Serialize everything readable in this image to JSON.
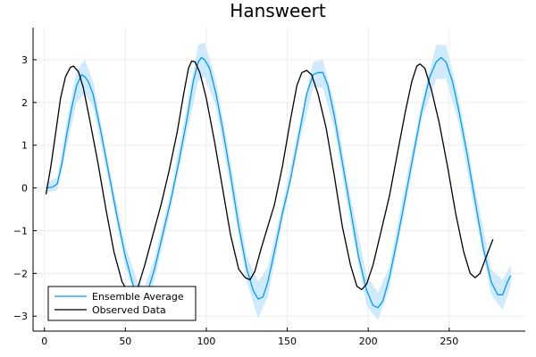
{
  "chart_data": {
    "type": "line",
    "title": "Hansweert",
    "xlabel": "",
    "ylabel": "",
    "xlim": [
      -7,
      297
    ],
    "ylim": [
      -3.35,
      3.75
    ],
    "x_ticks": [
      0,
      50,
      100,
      150,
      200,
      250
    ],
    "x_tick_labels": [
      "0",
      "50",
      "100",
      "150",
      "200",
      "250"
    ],
    "y_ticks": [
      -3,
      -2,
      -1,
      0,
      1,
      2,
      3
    ],
    "y_tick_labels": [
      "−3",
      "−2",
      "−1",
      "0",
      "1",
      "2",
      "3"
    ],
    "grid": true,
    "legend_position": "bottom-left",
    "colors": {
      "ensemble": "#009af9",
      "band": "#cfeafd",
      "observed": "#000000",
      "grid": "#ededed",
      "axis": "#000000"
    },
    "series": [
      {
        "name": "Ensemble Average",
        "color": "#009af9",
        "points": [
          [
            1,
            0.0
          ],
          [
            5,
            0.02
          ],
          [
            8,
            0.1
          ],
          [
            11,
            0.6
          ],
          [
            14,
            1.3
          ],
          [
            17,
            1.9
          ],
          [
            20,
            2.4
          ],
          [
            23,
            2.65
          ],
          [
            25,
            2.6
          ],
          [
            27,
            2.5
          ],
          [
            30,
            2.2
          ],
          [
            35,
            1.3
          ],
          [
            40,
            0.3
          ],
          [
            45,
            -0.7
          ],
          [
            50,
            -1.6
          ],
          [
            55,
            -2.3
          ],
          [
            58,
            -2.55
          ],
          [
            61,
            -2.6
          ],
          [
            64,
            -2.4
          ],
          [
            68,
            -1.9
          ],
          [
            73,
            -1.1
          ],
          [
            78,
            -0.3
          ],
          [
            83,
            0.6
          ],
          [
            88,
            1.6
          ],
          [
            92,
            2.5
          ],
          [
            95,
            2.95
          ],
          [
            97,
            3.05
          ],
          [
            99,
            3.0
          ],
          [
            102,
            2.8
          ],
          [
            106,
            2.2
          ],
          [
            110,
            1.4
          ],
          [
            115,
            0.3
          ],
          [
            120,
            -0.9
          ],
          [
            125,
            -1.9
          ],
          [
            129,
            -2.4
          ],
          [
            132,
            -2.6
          ],
          [
            135,
            -2.55
          ],
          [
            138,
            -2.2
          ],
          [
            142,
            -1.5
          ],
          [
            147,
            -0.6
          ],
          [
            152,
            0.2
          ],
          [
            157,
            1.2
          ],
          [
            162,
            2.2
          ],
          [
            166,
            2.65
          ],
          [
            169,
            2.7
          ],
          [
            172,
            2.7
          ],
          [
            175,
            2.4
          ],
          [
            179,
            1.7
          ],
          [
            184,
            0.6
          ],
          [
            189,
            -0.5
          ],
          [
            194,
            -1.6
          ],
          [
            199,
            -2.4
          ],
          [
            203,
            -2.75
          ],
          [
            206,
            -2.8
          ],
          [
            209,
            -2.65
          ],
          [
            213,
            -2.1
          ],
          [
            218,
            -1.2
          ],
          [
            223,
            -0.2
          ],
          [
            228,
            0.8
          ],
          [
            233,
            1.8
          ],
          [
            238,
            2.6
          ],
          [
            242,
            2.95
          ],
          [
            245,
            3.05
          ],
          [
            248,
            2.95
          ],
          [
            252,
            2.5
          ],
          [
            256,
            1.8
          ],
          [
            261,
            0.8
          ],
          [
            266,
            -0.3
          ],
          [
            271,
            -1.4
          ],
          [
            276,
            -2.2
          ],
          [
            280,
            -2.5
          ],
          [
            283,
            -2.5
          ],
          [
            286,
            -2.2
          ],
          [
            288,
            -2.05
          ]
        ]
      },
      {
        "name": "Observed Data",
        "color": "#000000",
        "points": [
          [
            1,
            -0.15
          ],
          [
            4,
            0.5
          ],
          [
            7,
            1.3
          ],
          [
            10,
            2.1
          ],
          [
            13,
            2.6
          ],
          [
            16,
            2.82
          ],
          [
            18,
            2.85
          ],
          [
            21,
            2.72
          ],
          [
            24,
            2.35
          ],
          [
            28,
            1.6
          ],
          [
            33,
            0.6
          ],
          [
            38,
            -0.5
          ],
          [
            43,
            -1.5
          ],
          [
            48,
            -2.2
          ],
          [
            52,
            -2.45
          ],
          [
            55,
            -2.35
          ],
          [
            58,
            -2.3
          ],
          [
            62,
            -1.8
          ],
          [
            67,
            -1.1
          ],
          [
            72,
            -0.4
          ],
          [
            77,
            0.4
          ],
          [
            82,
            1.3
          ],
          [
            86,
            2.2
          ],
          [
            89,
            2.8
          ],
          [
            91,
            2.97
          ],
          [
            93,
            2.95
          ],
          [
            96,
            2.7
          ],
          [
            100,
            2.1
          ],
          [
            105,
            1.1
          ],
          [
            110,
            0.0
          ],
          [
            115,
            -1.1
          ],
          [
            120,
            -1.9
          ],
          [
            124,
            -2.1
          ],
          [
            127,
            -2.15
          ],
          [
            130,
            -1.95
          ],
          [
            134,
            -1.4
          ],
          [
            138,
            -0.9
          ],
          [
            142,
            -0.4
          ],
          [
            147,
            0.5
          ],
          [
            152,
            1.6
          ],
          [
            156,
            2.4
          ],
          [
            159,
            2.7
          ],
          [
            162,
            2.75
          ],
          [
            165,
            2.65
          ],
          [
            169,
            2.2
          ],
          [
            174,
            1.4
          ],
          [
            179,
            0.3
          ],
          [
            184,
            -0.9
          ],
          [
            189,
            -1.8
          ],
          [
            193,
            -2.3
          ],
          [
            196,
            -2.38
          ],
          [
            199,
            -2.25
          ],
          [
            203,
            -1.8
          ],
          [
            208,
            -1.0
          ],
          [
            213,
            -0.2
          ],
          [
            218,
            0.8
          ],
          [
            223,
            1.8
          ],
          [
            227,
            2.5
          ],
          [
            230,
            2.85
          ],
          [
            232,
            2.9
          ],
          [
            235,
            2.8
          ],
          [
            239,
            2.3
          ],
          [
            244,
            1.5
          ],
          [
            249,
            0.5
          ],
          [
            254,
            -0.6
          ],
          [
            259,
            -1.5
          ],
          [
            263,
            -2.0
          ],
          [
            266,
            -2.1
          ],
          [
            269,
            -2.0
          ],
          [
            273,
            -1.6
          ],
          [
            277,
            -1.2
          ]
        ]
      }
    ],
    "band": {
      "series": "Ensemble Average",
      "lower": [
        [
          1,
          -0.12
        ],
        [
          8,
          -0.05
        ],
        [
          14,
          1.0
        ],
        [
          20,
          2.0
        ],
        [
          25,
          2.2
        ],
        [
          30,
          1.9
        ],
        [
          40,
          0.1
        ],
        [
          50,
          -1.85
        ],
        [
          58,
          -2.85
        ],
        [
          62,
          -2.9
        ],
        [
          68,
          -2.15
        ],
        [
          78,
          -0.5
        ],
        [
          88,
          1.3
        ],
        [
          95,
          2.5
        ],
        [
          99,
          2.6
        ],
        [
          106,
          1.9
        ],
        [
          115,
          0.0
        ],
        [
          125,
          -2.2
        ],
        [
          132,
          -3.05
        ],
        [
          138,
          -2.55
        ],
        [
          147,
          -0.8
        ],
        [
          157,
          1.0
        ],
        [
          166,
          2.35
        ],
        [
          172,
          2.35
        ],
        [
          179,
          1.4
        ],
        [
          189,
          -0.8
        ],
        [
          199,
          -2.75
        ],
        [
          206,
          -3.1
        ],
        [
          213,
          -2.35
        ],
        [
          223,
          -0.45
        ],
        [
          233,
          1.6
        ],
        [
          242,
          2.55
        ],
        [
          248,
          2.55
        ],
        [
          256,
          1.5
        ],
        [
          266,
          -0.6
        ],
        [
          276,
          -2.5
        ],
        [
          283,
          -2.85
        ],
        [
          288,
          -2.3
        ]
      ],
      "upper": [
        [
          1,
          0.12
        ],
        [
          8,
          0.25
        ],
        [
          14,
          1.6
        ],
        [
          20,
          2.75
        ],
        [
          25,
          3.0
        ],
        [
          30,
          2.5
        ],
        [
          40,
          0.5
        ],
        [
          50,
          -1.35
        ],
        [
          58,
          -2.25
        ],
        [
          62,
          -2.3
        ],
        [
          68,
          -1.65
        ],
        [
          78,
          -0.1
        ],
        [
          88,
          1.9
        ],
        [
          95,
          3.35
        ],
        [
          99,
          3.4
        ],
        [
          106,
          2.5
        ],
        [
          115,
          0.6
        ],
        [
          125,
          -1.6
        ],
        [
          132,
          -2.2
        ],
        [
          138,
          -1.85
        ],
        [
          147,
          -0.4
        ],
        [
          157,
          1.4
        ],
        [
          166,
          2.95
        ],
        [
          172,
          3.0
        ],
        [
          179,
          2.0
        ],
        [
          189,
          -0.2
        ],
        [
          199,
          -2.05
        ],
        [
          206,
          -2.45
        ],
        [
          213,
          -1.85
        ],
        [
          223,
          0.1
        ],
        [
          233,
          2.0
        ],
        [
          242,
          3.35
        ],
        [
          248,
          3.35
        ],
        [
          256,
          2.1
        ],
        [
          266,
          0.0
        ],
        [
          276,
          -1.9
        ],
        [
          283,
          -2.15
        ],
        [
          288,
          -1.8
        ]
      ]
    }
  }
}
